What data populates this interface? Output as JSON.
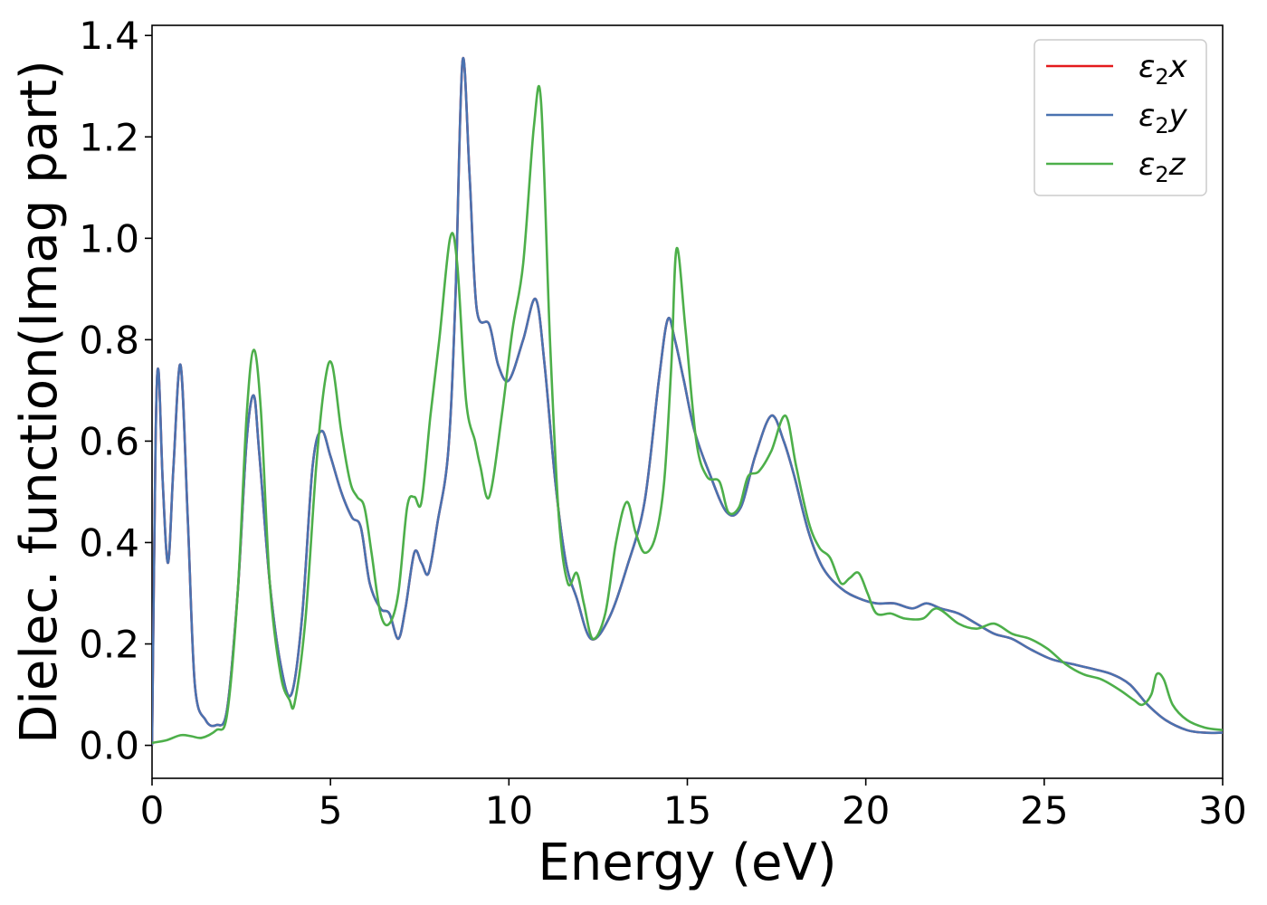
{
  "chart_data": {
    "type": "line",
    "xlabel": "Energy (eV)",
    "ylabel": "Dielec. function(Imag part)",
    "xlim": [
      0,
      30
    ],
    "ylim": [
      -0.065,
      1.42
    ],
    "xticks": [
      0,
      5,
      10,
      15,
      20,
      25,
      30
    ],
    "xtick_labels": [
      "0",
      "5",
      "10",
      "15",
      "20",
      "25",
      "30"
    ],
    "yticks": [
      0.0,
      0.2,
      0.4,
      0.6,
      0.8,
      1.0,
      1.2,
      1.4
    ],
    "ytick_labels": [
      "0.0",
      "0.2",
      "0.4",
      "0.6",
      "0.8",
      "1.0",
      "1.2",
      "1.4"
    ],
    "grid": false,
    "legend_position": "top-right",
    "series": [
      {
        "name": "ε₂x",
        "legend_base": "ε",
        "legend_sub": "2",
        "legend_suffix": "x",
        "color": "#e41a1c",
        "x": [
          0,
          0.1,
          0.18,
          0.3,
          0.45,
          0.6,
          0.8,
          1.0,
          1.2,
          1.5,
          1.8,
          2.1,
          2.4,
          2.65,
          2.85,
          3.0,
          3.3,
          3.6,
          3.9,
          4.2,
          4.5,
          4.75,
          5.0,
          5.3,
          5.6,
          5.85,
          6.1,
          6.4,
          6.65,
          6.9,
          7.1,
          7.35,
          7.55,
          7.75,
          8.0,
          8.3,
          8.5,
          8.7,
          8.9,
          9.1,
          9.45,
          9.7,
          10.0,
          10.4,
          10.75,
          11.0,
          11.3,
          11.6,
          11.9,
          12.3,
          12.8,
          13.3,
          13.8,
          14.2,
          14.45,
          14.65,
          14.9,
          15.2,
          15.6,
          16.1,
          16.5,
          16.9,
          17.35,
          17.7,
          18.0,
          18.4,
          18.8,
          19.3,
          19.8,
          20.3,
          20.8,
          21.3,
          21.7,
          22.1,
          22.6,
          23.1,
          23.6,
          24.1,
          24.6,
          25.2,
          25.8,
          26.4,
          26.9,
          27.4,
          27.9,
          28.4,
          29.0,
          29.5,
          30.0
        ],
        "values": [
          0.0,
          0.6,
          0.74,
          0.52,
          0.36,
          0.55,
          0.75,
          0.45,
          0.12,
          0.05,
          0.04,
          0.07,
          0.3,
          0.6,
          0.69,
          0.58,
          0.32,
          0.16,
          0.1,
          0.25,
          0.55,
          0.62,
          0.57,
          0.5,
          0.45,
          0.43,
          0.32,
          0.27,
          0.26,
          0.21,
          0.27,
          0.38,
          0.36,
          0.34,
          0.44,
          0.58,
          0.88,
          1.35,
          1.12,
          0.86,
          0.83,
          0.75,
          0.72,
          0.8,
          0.88,
          0.75,
          0.52,
          0.36,
          0.29,
          0.21,
          0.25,
          0.35,
          0.48,
          0.72,
          0.84,
          0.8,
          0.72,
          0.62,
          0.54,
          0.46,
          0.47,
          0.57,
          0.65,
          0.6,
          0.53,
          0.42,
          0.35,
          0.31,
          0.29,
          0.28,
          0.28,
          0.27,
          0.28,
          0.27,
          0.26,
          0.24,
          0.22,
          0.21,
          0.19,
          0.17,
          0.16,
          0.15,
          0.14,
          0.12,
          0.08,
          0.05,
          0.03,
          0.025,
          0.025
        ]
      },
      {
        "name": "ε₂y",
        "legend_base": "ε",
        "legend_sub": "2",
        "legend_suffix": "y",
        "color": "#4a72b0",
        "x": [
          0,
          0.1,
          0.18,
          0.3,
          0.45,
          0.6,
          0.8,
          1.0,
          1.2,
          1.5,
          1.8,
          2.1,
          2.4,
          2.65,
          2.85,
          3.0,
          3.3,
          3.6,
          3.9,
          4.2,
          4.5,
          4.75,
          5.0,
          5.3,
          5.6,
          5.85,
          6.1,
          6.4,
          6.65,
          6.9,
          7.1,
          7.35,
          7.55,
          7.75,
          8.0,
          8.3,
          8.5,
          8.7,
          8.9,
          9.1,
          9.45,
          9.7,
          10.0,
          10.4,
          10.75,
          11.0,
          11.3,
          11.6,
          11.9,
          12.3,
          12.8,
          13.3,
          13.8,
          14.2,
          14.45,
          14.65,
          14.9,
          15.2,
          15.6,
          16.1,
          16.5,
          16.9,
          17.35,
          17.7,
          18.0,
          18.4,
          18.8,
          19.3,
          19.8,
          20.3,
          20.8,
          21.3,
          21.7,
          22.1,
          22.6,
          23.1,
          23.6,
          24.1,
          24.6,
          25.2,
          25.8,
          26.4,
          26.9,
          27.4,
          27.9,
          28.4,
          29.0,
          29.5,
          30.0
        ],
        "values": [
          0.0,
          0.6,
          0.74,
          0.52,
          0.36,
          0.55,
          0.75,
          0.45,
          0.12,
          0.05,
          0.04,
          0.07,
          0.3,
          0.6,
          0.69,
          0.58,
          0.32,
          0.16,
          0.1,
          0.25,
          0.55,
          0.62,
          0.57,
          0.5,
          0.45,
          0.43,
          0.32,
          0.27,
          0.26,
          0.21,
          0.27,
          0.38,
          0.36,
          0.34,
          0.44,
          0.58,
          0.88,
          1.35,
          1.12,
          0.86,
          0.83,
          0.75,
          0.72,
          0.8,
          0.88,
          0.75,
          0.52,
          0.36,
          0.29,
          0.21,
          0.25,
          0.35,
          0.48,
          0.72,
          0.84,
          0.8,
          0.72,
          0.62,
          0.54,
          0.46,
          0.47,
          0.57,
          0.65,
          0.6,
          0.53,
          0.42,
          0.35,
          0.31,
          0.29,
          0.28,
          0.28,
          0.27,
          0.28,
          0.27,
          0.26,
          0.24,
          0.22,
          0.21,
          0.19,
          0.17,
          0.16,
          0.15,
          0.14,
          0.12,
          0.08,
          0.05,
          0.03,
          0.025,
          0.025
        ]
      },
      {
        "name": "ε₂z",
        "legend_base": "ε",
        "legend_sub": "2",
        "legend_suffix": "z",
        "color": "#4daf4a",
        "x": [
          0,
          0.4,
          0.8,
          1.1,
          1.4,
          1.8,
          2.1,
          2.4,
          2.65,
          2.85,
          3.05,
          3.3,
          3.6,
          3.85,
          4.0,
          4.3,
          4.6,
          4.85,
          5.05,
          5.3,
          5.55,
          5.75,
          5.95,
          6.15,
          6.4,
          6.65,
          6.9,
          7.15,
          7.35,
          7.55,
          7.8,
          8.05,
          8.35,
          8.55,
          8.8,
          9.05,
          9.2,
          9.45,
          9.8,
          10.1,
          10.4,
          10.7,
          10.9,
          11.15,
          11.4,
          11.65,
          11.9,
          12.1,
          12.35,
          12.7,
          13.0,
          13.3,
          13.55,
          13.8,
          14.1,
          14.35,
          14.55,
          14.7,
          14.95,
          15.25,
          15.55,
          15.9,
          16.15,
          16.45,
          16.7,
          17.0,
          17.35,
          17.75,
          18.05,
          18.4,
          18.7,
          19.0,
          19.3,
          19.55,
          19.8,
          20.05,
          20.3,
          20.7,
          21.1,
          21.6,
          22.0,
          22.6,
          23.1,
          23.6,
          24.1,
          24.6,
          25.1,
          25.6,
          26.1,
          26.6,
          27.1,
          27.5,
          27.75,
          28.0,
          28.15,
          28.35,
          28.6,
          29.0,
          29.5,
          30.0
        ],
        "values": [
          0.005,
          0.01,
          0.02,
          0.018,
          0.015,
          0.03,
          0.06,
          0.3,
          0.65,
          0.78,
          0.66,
          0.32,
          0.14,
          0.09,
          0.085,
          0.25,
          0.55,
          0.72,
          0.75,
          0.62,
          0.52,
          0.49,
          0.47,
          0.38,
          0.26,
          0.24,
          0.3,
          0.47,
          0.49,
          0.48,
          0.65,
          0.8,
          1.0,
          0.95,
          0.68,
          0.6,
          0.55,
          0.49,
          0.65,
          0.82,
          0.95,
          1.22,
          1.27,
          0.8,
          0.45,
          0.32,
          0.34,
          0.28,
          0.21,
          0.26,
          0.4,
          0.48,
          0.42,
          0.38,
          0.41,
          0.52,
          0.75,
          0.98,
          0.82,
          0.6,
          0.53,
          0.52,
          0.46,
          0.47,
          0.53,
          0.54,
          0.58,
          0.65,
          0.55,
          0.44,
          0.39,
          0.37,
          0.32,
          0.33,
          0.34,
          0.3,
          0.26,
          0.26,
          0.25,
          0.25,
          0.27,
          0.24,
          0.23,
          0.24,
          0.22,
          0.21,
          0.19,
          0.16,
          0.14,
          0.13,
          0.11,
          0.09,
          0.08,
          0.1,
          0.14,
          0.13,
          0.08,
          0.05,
          0.035,
          0.03
        ]
      }
    ]
  }
}
